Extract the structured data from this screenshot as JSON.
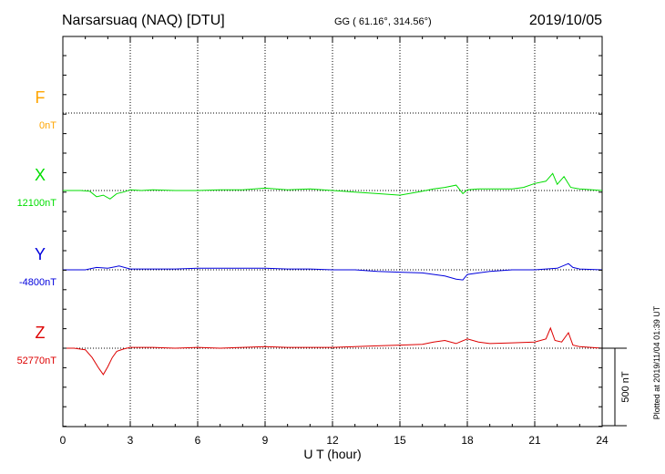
{
  "header": {
    "station": "Narsarsuaq (NAQ)  [DTU]",
    "coords": "GG ( 61.16°, 314.56°)",
    "date": "2019/10/05"
  },
  "footer": {
    "plotted": "Plotted at 2019/11/04 01:39 UT"
  },
  "chart_data": {
    "type": "line",
    "xlabel": "U T (hour)",
    "xlim": [
      0,
      24
    ],
    "x_ticks": [
      0,
      3,
      6,
      9,
      12,
      15,
      18,
      21,
      24
    ],
    "x_tick_labels": [
      "0",
      "3",
      "6",
      "9",
      "12",
      "15",
      "18",
      "21",
      "24"
    ],
    "y_unit": "nT",
    "scale_bar_nT": 500,
    "scale_bar_label": "500 nT",
    "grid": true,
    "series": [
      {
        "name": "F",
        "baseline_label": "0nT",
        "color": "#ffa500",
        "x": [],
        "values": []
      },
      {
        "name": "X",
        "baseline_label": "12100nT",
        "color": "#00dd00",
        "x": [
          0,
          0.8,
          1.2,
          1.5,
          1.8,
          2.1,
          2.4,
          2.7,
          3.0,
          3.5,
          4,
          5,
          6,
          7,
          8,
          9,
          10,
          11,
          12,
          13,
          14,
          15,
          16,
          16.5,
          17,
          17.5,
          17.8,
          18,
          18.5,
          19,
          20,
          20.5,
          21,
          21.5,
          21.8,
          22,
          22.3,
          22.6,
          23,
          24
        ],
        "values": [
          0,
          0,
          -5,
          -40,
          -30,
          -55,
          -20,
          -10,
          5,
          0,
          5,
          0,
          0,
          5,
          5,
          15,
          5,
          10,
          0,
          -10,
          -20,
          -30,
          -5,
          10,
          20,
          35,
          -20,
          5,
          10,
          10,
          10,
          20,
          45,
          60,
          110,
          40,
          90,
          20,
          10,
          0
        ]
      },
      {
        "name": "Y",
        "baseline_label": "-4800nT",
        "color": "#0000dd",
        "x": [
          0,
          1,
          1.5,
          2.0,
          2.5,
          3,
          4,
          5,
          6,
          7,
          8,
          9,
          10,
          11,
          12,
          13,
          14,
          15,
          16,
          17,
          17.5,
          17.8,
          18,
          18.5,
          19,
          20,
          21,
          21.5,
          22,
          22.5,
          22.7,
          23,
          24
        ],
        "values": [
          0,
          0,
          15,
          10,
          25,
          5,
          5,
          5,
          10,
          10,
          10,
          10,
          5,
          5,
          0,
          0,
          -10,
          -15,
          -20,
          -40,
          -60,
          -65,
          -30,
          -20,
          -10,
          0,
          0,
          5,
          10,
          40,
          15,
          5,
          0
        ]
      },
      {
        "name": "Z",
        "baseline_label": "52770nT",
        "color": "#dd0000",
        "x": [
          0,
          0.5,
          1.0,
          1.3,
          1.6,
          1.8,
          2.0,
          2.2,
          2.4,
          2.7,
          3.0,
          4,
          5,
          6,
          7,
          8,
          9,
          10,
          11,
          12,
          13,
          14,
          15,
          16,
          16.5,
          17,
          17.5,
          18,
          18.5,
          19,
          20,
          21,
          21.5,
          21.7,
          21.9,
          22.2,
          22.5,
          22.7,
          23,
          24
        ],
        "values": [
          0,
          0,
          -10,
          -60,
          -130,
          -170,
          -120,
          -60,
          -20,
          -5,
          5,
          5,
          0,
          5,
          0,
          5,
          10,
          5,
          5,
          5,
          10,
          15,
          20,
          25,
          40,
          50,
          30,
          60,
          40,
          30,
          35,
          40,
          60,
          130,
          50,
          40,
          100,
          20,
          10,
          0
        ]
      }
    ]
  }
}
